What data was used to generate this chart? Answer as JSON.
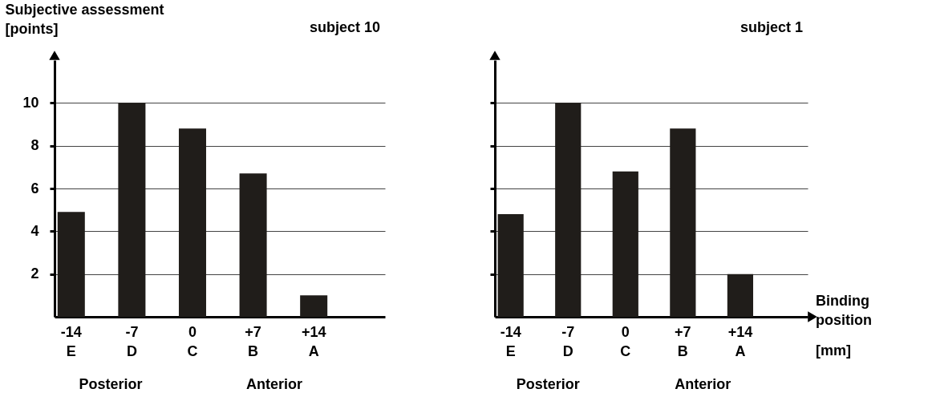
{
  "chart_data": [
    {
      "type": "bar",
      "title": "subject 10",
      "ylabel": "Subjective assessment\n[points]",
      "categories": [
        "-14\nE",
        "-7\nD",
        "0\nC",
        "+7\nB",
        "+14\nA"
      ],
      "series": [
        {
          "color": "#201d1a",
          "values": [
            4.9,
            10,
            8.8,
            6.7,
            1.0
          ]
        }
      ],
      "ylim": [
        0,
        12
      ],
      "yticks": [
        2,
        4,
        6,
        8,
        10
      ],
      "grid": "y",
      "annotations": [
        "Posterior",
        "Anterior"
      ]
    },
    {
      "type": "bar",
      "title": "subject 1",
      "xlabel": "Binding position\n[mm]",
      "categories": [
        "-14\nE",
        "-7\nD",
        "0\nC",
        "+7\nB",
        "+14\nA"
      ],
      "series": [
        {
          "color": "#201d1a",
          "values": [
            4.8,
            10,
            6.8,
            8.8,
            2.0
          ]
        }
      ],
      "ylim": [
        0,
        12
      ],
      "yticks": [
        2,
        4,
        6,
        8,
        10
      ],
      "grid": "y",
      "tick_labels": "x",
      "annotations": [
        "Posterior",
        "Anterior"
      ]
    }
  ]
}
